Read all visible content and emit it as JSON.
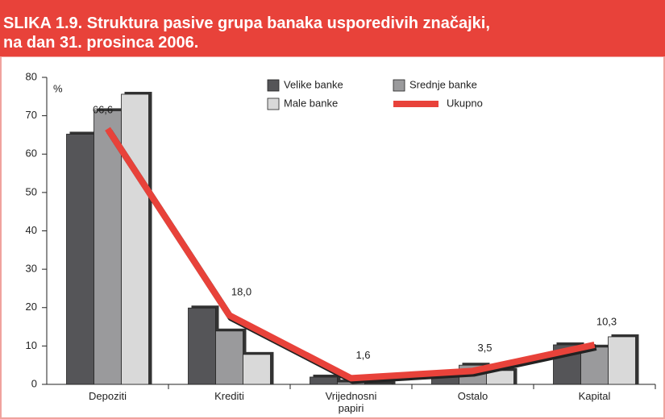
{
  "chart_data": {
    "type": "bar_line",
    "title": [
      "SLIKA 1.9. Struktura pasive grupa banaka usporedivih značajki,",
      "na dan 31. prosinca 2006."
    ],
    "y_unit": "%",
    "categories": [
      "Depoziti",
      "Krediti",
      "Vrijednosni papiri",
      "Ostalo",
      "Kapital"
    ],
    "series": [
      {
        "name": "Velike banke",
        "type": "bar",
        "color": "#555558",
        "values": [
          65.2,
          19.9,
          1.9,
          2.5,
          10.3
        ]
      },
      {
        "name": "Srednje banke",
        "type": "bar",
        "color": "#9a9a9c",
        "values": [
          71.3,
          13.9,
          0.6,
          5.0,
          9.7
        ]
      },
      {
        "name": "Male banke",
        "type": "bar",
        "color": "#d9d9d9",
        "values": [
          75.6,
          7.8,
          0.2,
          3.6,
          12.4
        ]
      },
      {
        "name": "Ukupno",
        "type": "line",
        "color": "#e8423a",
        "values": [
          66.6,
          18.0,
          1.6,
          3.5,
          10.3
        ],
        "value_labels": [
          "66,6",
          "18,0",
          "1,6",
          "3,5",
          "10,3"
        ]
      }
    ],
    "ylim": [
      0,
      80
    ],
    "yticks": [
      0,
      10,
      20,
      30,
      40,
      50,
      60,
      70,
      80
    ]
  }
}
